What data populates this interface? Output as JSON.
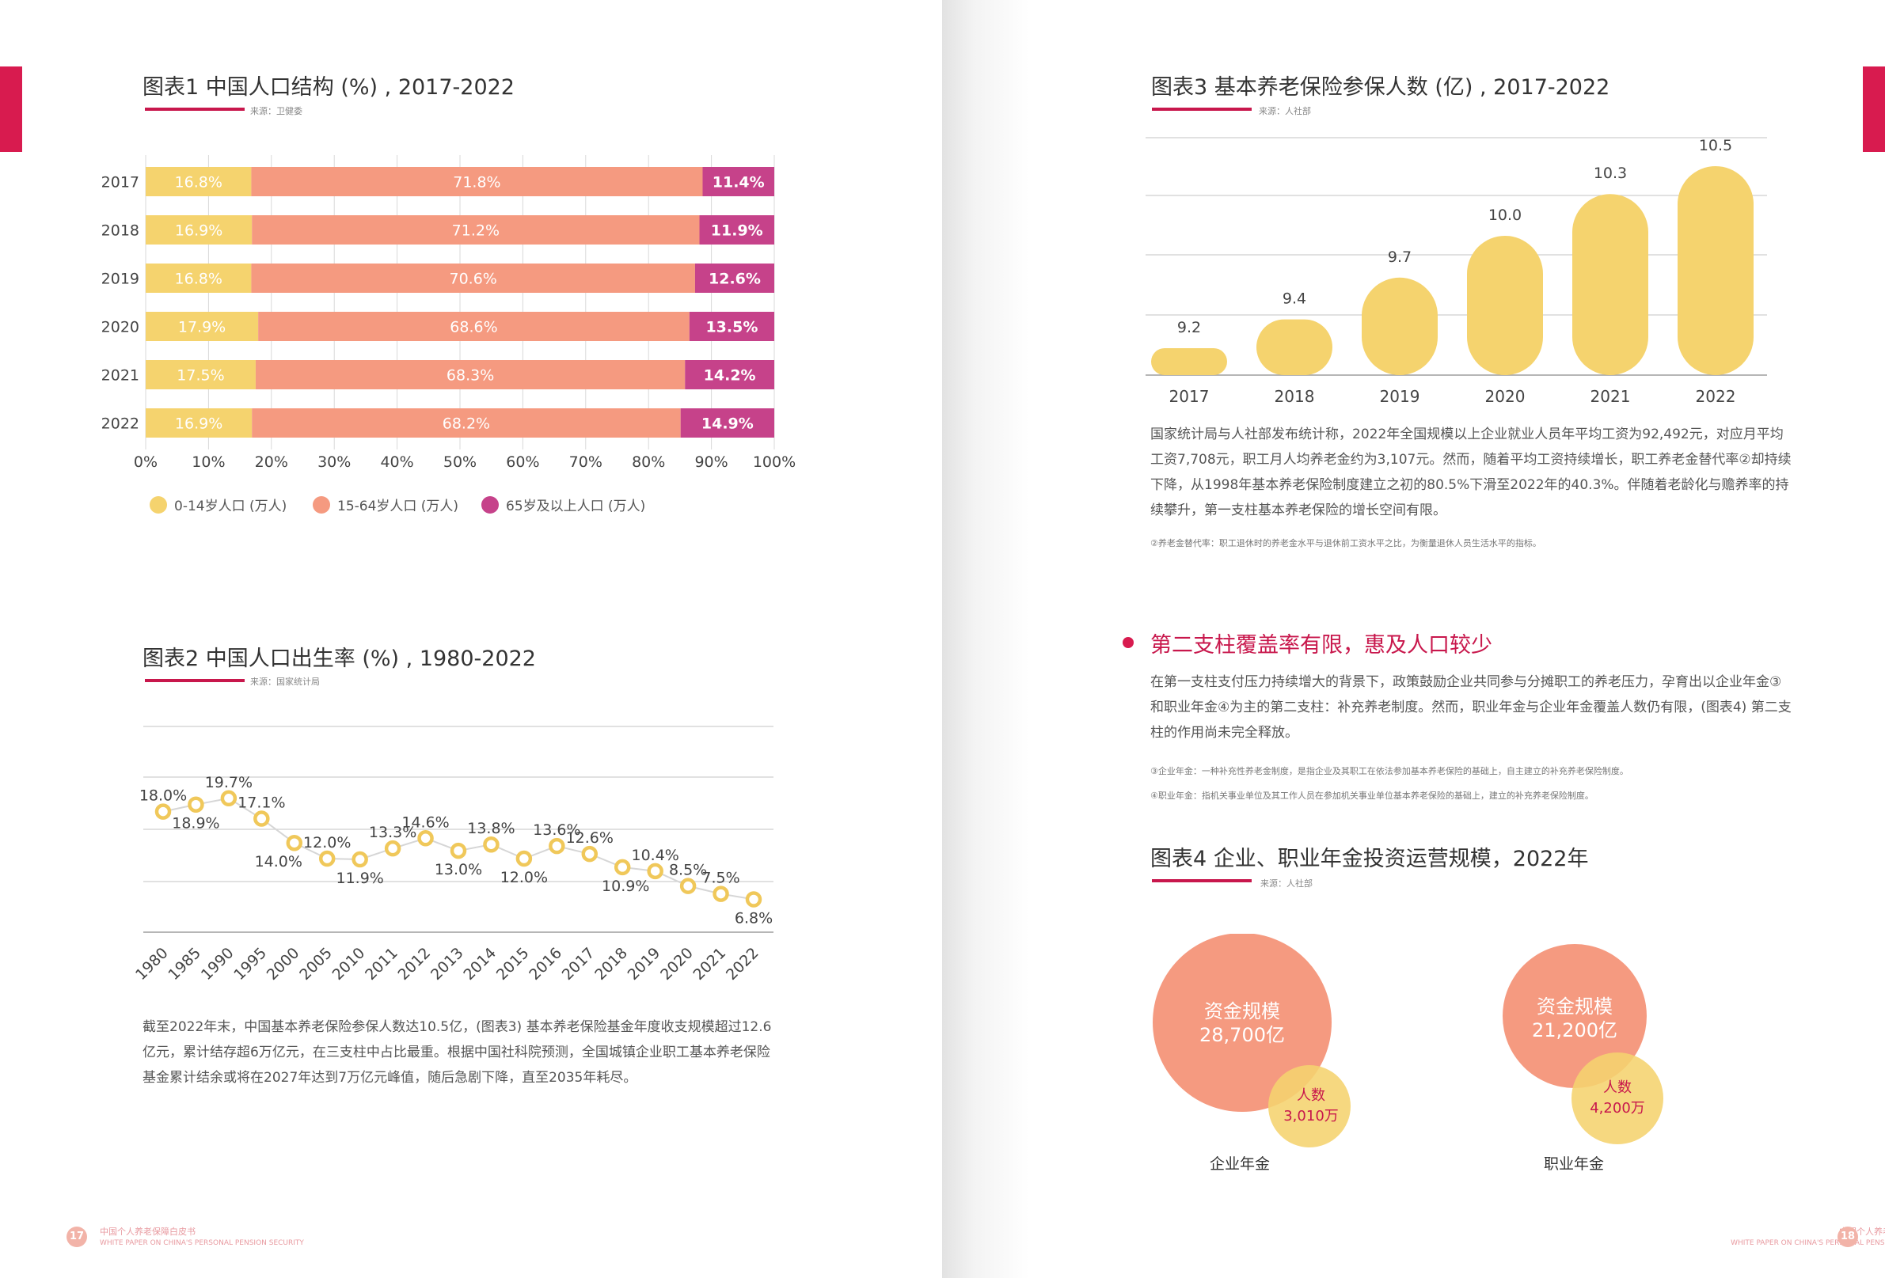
{
  "left": {
    "chart1": {
      "title": "图表1  中国人口结构 (%) , 2017-2022",
      "source": "来源：卫健委",
      "colors": {
        "young": "#f5d36e",
        "work": "#f59a80",
        "old": "#c6428a"
      },
      "legend": [
        "0-14岁人口 (万人)",
        "15-64岁人口 (万人)",
        "65岁及以上人口 (万人)"
      ]
    },
    "chart2": {
      "title": "图表2  中国人口出生率 (%) , 1980-2022",
      "source": "来源：国家统计局"
    },
    "paragraph": "截至2022年末，中国基本养老保险参保人数达10.5亿，(图表3) 基本养老保险基金年度收支规模超过12.6亿元，累计结存超6万亿元，在三支柱中占比最重。根据中国社科院预测，全国城镇企业职工基本养老保险基金累计结余或将在2027年达到7万亿元峰值，随后急剧下降，直至2035年耗尽。",
    "footer": {
      "page": "17",
      "cn": "中国个人养老保障白皮书",
      "en": "WHITE PAPER ON CHINA'S PERSONAL PENSION SECURITY"
    }
  },
  "right": {
    "chart3": {
      "title": "图表3  基本养老保险参保人数 (亿) , 2017-2022",
      "source": "来源：人社部"
    },
    "paragraph1": "国家统计局与人社部发布统计称，2022年全国规模以上企业就业人员年平均工资为92,492元，对应月平均工资7,708元，职工月人均养老金约为3,107元。然而，随着平均工资持续增长，职工养老金替代率②却持续下降，从1998年基本养老保险制度建立之初的80.5%下滑至2022年的40.3%。伴随着老龄化与赡养率的持续攀升，第一支柱基本养老保险的增长空间有限。",
    "footnote1": "②养老金替代率：职工退休时的养老金水平与退休前工资水平之比，为衡量退休人员生活水平的指标。",
    "section_heading": "第二支柱覆盖率有限，惠及人口较少",
    "paragraph2": "在第一支柱支付压力持续增大的背景下，政策鼓励企业共同参与分摊职工的养老压力，孕育出以企业年金③和职业年金④为主的第二支柱：补充养老制度。然而，职业年金与企业年金覆盖人数仍有限，(图表4) 第二支柱的作用尚未完全释放。",
    "footnote2": "③企业年金：一种补充性养老金制度，是指企业及其职工在依法参加基本养老保险的基础上，自主建立的补充养老保险制度。",
    "footnote3": "④职业年金：指机关事业单位及其工作人员在参加机关事业单位基本养老保险的基础上，建立的补充养老保险制度。",
    "chart4": {
      "title": "图表4  企业、职业年金投资运营规模，2022年",
      "source": "来源：人社部",
      "groups": [
        {
          "big_label": "资金规模",
          "big_value": "28,700亿",
          "small_label": "人数",
          "small_value": "3,010万",
          "name": "企业年金"
        },
        {
          "big_label": "资金规模",
          "big_value": "21,200亿",
          "small_label": "人数",
          "small_value": "4,200万",
          "name": "职业年金"
        }
      ]
    },
    "footer": {
      "page": "18",
      "cn": "中国个人养老保障白皮书",
      "en": "WHITE PAPER ON CHINA'S PERSONAL PENSION SECURITY"
    }
  },
  "chart_data": [
    {
      "type": "bar",
      "stacked": true,
      "orientation": "horizontal",
      "title": "图表1  中国人口结构 (%) , 2017-2022",
      "categories": [
        "2017",
        "2018",
        "2019",
        "2020",
        "2021",
        "2022"
      ],
      "series": [
        {
          "name": "0-14岁人口 (万人)",
          "values": [
            16.8,
            16.9,
            16.8,
            17.9,
            17.5,
            16.9
          ],
          "labels": [
            "16.8%",
            "16.9%",
            "16.8%",
            "17.9%",
            "17.5%",
            "16.9%"
          ]
        },
        {
          "name": "15-64岁人口 (万人)",
          "values": [
            71.8,
            71.2,
            70.6,
            68.6,
            68.3,
            68.2
          ],
          "labels": [
            "71.8%",
            "71.2%",
            "70.6%",
            "68.6%",
            "68.3%",
            "68.2%"
          ]
        },
        {
          "name": "65岁及以上人口 (万人)",
          "values": [
            11.4,
            11.9,
            12.6,
            13.5,
            14.2,
            14.9
          ],
          "labels": [
            "11.4%",
            "11.9%",
            "12.6%",
            "13.5%",
            "14.2%",
            "14.9%"
          ]
        }
      ],
      "xticks": [
        "0%",
        "10%",
        "20%",
        "30%",
        "40%",
        "50%",
        "60%",
        "70%",
        "80%",
        "90%",
        "100%"
      ],
      "xlim": [
        0,
        100
      ],
      "legend_position": "bottom-left"
    },
    {
      "type": "line",
      "title": "图表2  中国人口出生率 (%) , 1980-2022",
      "categories": [
        "1980",
        "1985",
        "1990",
        "1995",
        "2000",
        "2005",
        "2010",
        "2011",
        "2012",
        "2013",
        "2014",
        "2015",
        "2016",
        "2017",
        "2018",
        "2019",
        "2020",
        "2021",
        "2022"
      ],
      "values": [
        18.0,
        18.9,
        19.7,
        17.1,
        14.0,
        12.0,
        11.9,
        13.3,
        14.6,
        13.0,
        13.8,
        12.0,
        13.6,
        12.6,
        10.9,
        10.4,
        8.5,
        7.5,
        6.8
      ],
      "labels": [
        "18.0%",
        "18.9%",
        "19.7%",
        "17.1%",
        "14.0%",
        "12.0%",
        "11.9%",
        "13.3%",
        "14.6%",
        "13.0%",
        "13.8%",
        "12.0%",
        "13.6%",
        "12.6%",
        "10.9%",
        "10.4%",
        "8.5%",
        "7.5%",
        "6.8%"
      ],
      "ylim": [
        5,
        22
      ]
    },
    {
      "type": "bar",
      "title": "图表3  基本养老保险参保人数 (亿) , 2017-2022",
      "categories": [
        "2017",
        "2018",
        "2019",
        "2020",
        "2021",
        "2022"
      ],
      "values": [
        9.2,
        9.4,
        9.7,
        10.0,
        10.3,
        10.5
      ],
      "labels": [
        "9.2",
        "9.4",
        "9.7",
        "10.0",
        "10.3",
        "10.5"
      ],
      "ylim": [
        9.0,
        10.6
      ]
    }
  ]
}
